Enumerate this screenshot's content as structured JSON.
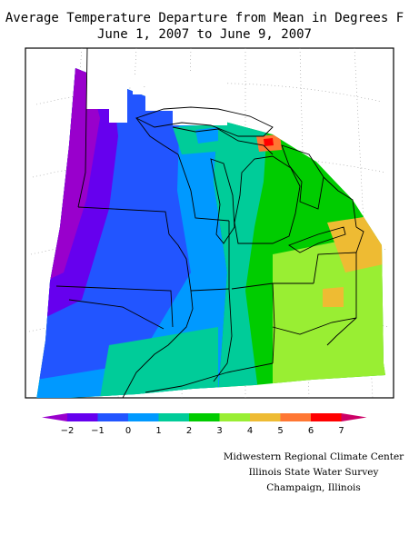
{
  "header": {
    "title": "Average Temperature Departure from Mean in Degrees F",
    "subtitle": "June 1, 2007 to June 9, 2007"
  },
  "legend": {
    "ticks": [
      "-2",
      "-1",
      "0",
      "1",
      "2",
      "3",
      "4",
      "5",
      "6",
      "7"
    ],
    "bins": [
      {
        "color": "#9900cc"
      },
      {
        "color": "#6600ee"
      },
      {
        "color": "#2255ff"
      },
      {
        "color": "#0099ff"
      },
      {
        "color": "#00cc99"
      },
      {
        "color": "#00cc00"
      },
      {
        "color": "#99ee33"
      },
      {
        "color": "#eebb33"
      },
      {
        "color": "#ff7733"
      },
      {
        "color": "#ff0000"
      },
      {
        "color": "#cc0066"
      }
    ]
  },
  "credits": {
    "line1": "Midwestern Regional Climate Center",
    "line2": "Illinois State Water Survey",
    "line3": "Champaign, Illinois"
  }
}
